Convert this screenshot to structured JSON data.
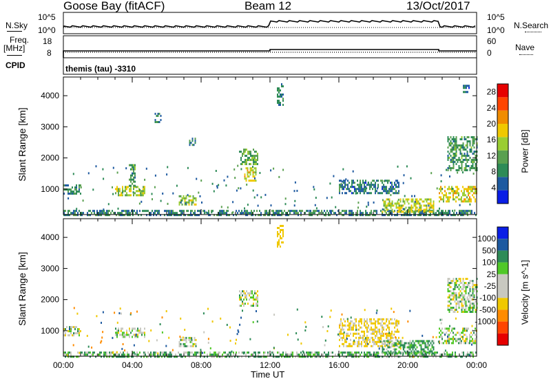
{
  "header": {
    "station": "Goose Bay (fitACF)",
    "beam": "Beam 12",
    "date": "13/Oct/2017"
  },
  "noise_panel": {
    "left_label": "N.Sky",
    "left_ticks": [
      "10^5",
      "10^0"
    ],
    "right_ticks": [
      "10^5",
      "10^0"
    ],
    "right_label": "N.Search"
  },
  "freq_panel": {
    "left_label_1": "Freq.",
    "left_label_2": "[MHz]",
    "left_ticks": [
      "18",
      "8"
    ],
    "right_ticks": [
      "60",
      "0"
    ],
    "right_label": "Nave"
  },
  "cpid": {
    "label": "CPID",
    "value": "themis (tau) -3310"
  },
  "colors": {
    "power_scale": [
      "#0a1ee6",
      "#1e5aa0",
      "#2e8b57",
      "#5aa050",
      "#9acd32",
      "#f0c800",
      "#f08c00",
      "#ff4500",
      "#e60000"
    ],
    "velocity_scale": [
      "#e60000",
      "#ff4500",
      "#ff8c00",
      "#f0c800",
      "#c8c8c0",
      "#c8c8c0",
      "#50c828",
      "#2e8b57",
      "#1e5aa0",
      "#0a1ee6"
    ]
  },
  "chart_data": [
    {
      "type": "heatmap",
      "title": "Power",
      "xlabel": "",
      "ylabel": "Slant Range [km]",
      "xlim": [
        "00:00",
        "24:00"
      ],
      "ylim": [
        180,
        4600
      ],
      "y_ticks": [
        "1000",
        "2000",
        "3000",
        "4000"
      ],
      "colorbar_label": "Power [dB]",
      "colorbar_ticks": [
        "4",
        "8",
        "12",
        "16",
        "20",
        "24",
        "28"
      ],
      "clim": [
        0,
        30
      ],
      "regions": [
        {
          "t": [
            0.0,
            24.0
          ],
          "r": [
            180,
            330
          ],
          "v": 8
        },
        {
          "t": [
            0.0,
            1.0
          ],
          "r": [
            850,
            1150
          ],
          "v": 8
        },
        {
          "t": [
            3.0,
            4.7
          ],
          "r": [
            800,
            1100
          ],
          "v": 15
        },
        {
          "t": [
            3.8,
            4.2
          ],
          "r": [
            1100,
            1800
          ],
          "v": 10
        },
        {
          "t": [
            5.3,
            5.7
          ],
          "r": [
            3150,
            3450
          ],
          "v": 8
        },
        {
          "t": [
            6.7,
            7.7
          ],
          "r": [
            500,
            800
          ],
          "v": 14
        },
        {
          "t": [
            7.3,
            7.7
          ],
          "r": [
            2400,
            2650
          ],
          "v": 9
        },
        {
          "t": [
            10.2,
            11.3
          ],
          "r": [
            1800,
            2300
          ],
          "v": 11
        },
        {
          "t": [
            10.5,
            11.2
          ],
          "r": [
            1300,
            1700
          ],
          "v": 17
        },
        {
          "t": [
            12.4,
            12.8
          ],
          "r": [
            3700,
            4400
          ],
          "v": 7
        },
        {
          "t": [
            16.0,
            19.5
          ],
          "r": [
            900,
            1300
          ],
          "v": 7
        },
        {
          "t": [
            18.5,
            21.5
          ],
          "r": [
            300,
            700
          ],
          "v": 16
        },
        {
          "t": [
            21.8,
            24.0
          ],
          "r": [
            600,
            1100
          ],
          "v": 17
        },
        {
          "t": [
            22.3,
            24.0
          ],
          "r": [
            1600,
            2700
          ],
          "v": 10
        },
        {
          "t": [
            23.2,
            23.6
          ],
          "r": [
            4100,
            4350
          ],
          "v": 7
        }
      ]
    },
    {
      "type": "heatmap",
      "title": "Velocity",
      "xlabel": "Time UT",
      "ylabel": "Slant Range [km]",
      "xlim": [
        "00:00",
        "24:00"
      ],
      "x_ticks": [
        "00:00",
        "04:00",
        "08:00",
        "12:00",
        "16:00",
        "20:00",
        "00:00"
      ],
      "ylim": [
        180,
        4600
      ],
      "y_ticks": [
        "1000",
        "2000",
        "3000",
        "4000"
      ],
      "colorbar_label": "Velocity [m s^-1]",
      "colorbar_ticks": [
        "1000",
        "500",
        "100",
        "25",
        "-25",
        "-100",
        "-500",
        "-1000"
      ],
      "clim": [
        -1200,
        1200
      ],
      "regions": [
        {
          "t": [
            0.0,
            24.0
          ],
          "r": [
            180,
            330
          ],
          "v": 80
        },
        {
          "t": [
            0.0,
            1.0
          ],
          "r": [
            850,
            1150
          ],
          "v": 0
        },
        {
          "t": [
            3.0,
            4.7
          ],
          "r": [
            800,
            1100
          ],
          "v": 0
        },
        {
          "t": [
            6.7,
            7.7
          ],
          "r": [
            500,
            800
          ],
          "v": 0
        },
        {
          "t": [
            10.2,
            11.3
          ],
          "r": [
            1800,
            2300
          ],
          "v": 0
        },
        {
          "t": [
            12.4,
            12.8
          ],
          "r": [
            3700,
            4400
          ],
          "v": -300
        },
        {
          "t": [
            16.0,
            19.5
          ],
          "r": [
            500,
            1400
          ],
          "v": -150
        },
        {
          "t": [
            18.5,
            21.5
          ],
          "r": [
            300,
            700
          ],
          "v": 120
        },
        {
          "t": [
            21.8,
            24.0
          ],
          "r": [
            600,
            1100
          ],
          "v": 0
        },
        {
          "t": [
            22.3,
            24.0
          ],
          "r": [
            1600,
            2700
          ],
          "v": 0
        }
      ]
    }
  ]
}
